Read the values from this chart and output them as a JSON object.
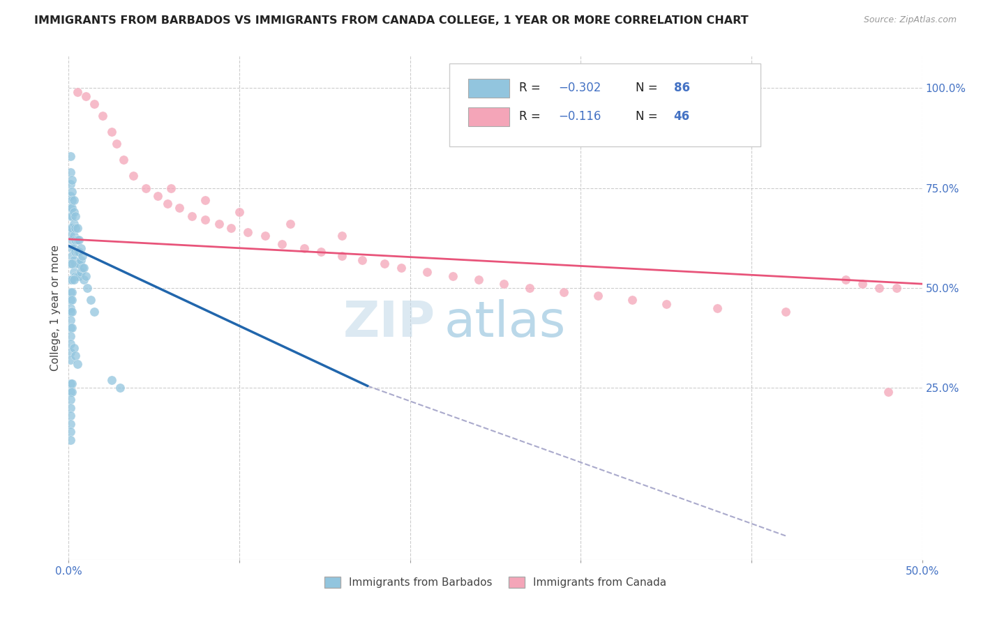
{
  "title": "IMMIGRANTS FROM BARBADOS VS IMMIGRANTS FROM CANADA COLLEGE, 1 YEAR OR MORE CORRELATION CHART",
  "source": "Source: ZipAtlas.com",
  "ylabel": "College, 1 year or more",
  "ylabel_right_ticks": [
    "100.0%",
    "75.0%",
    "50.0%",
    "25.0%"
  ],
  "ylabel_right_vals": [
    1.0,
    0.75,
    0.5,
    0.25
  ],
  "xlim": [
    0.0,
    0.5
  ],
  "ylim": [
    -0.18,
    1.08
  ],
  "color_blue": "#92c5de",
  "color_pink": "#f4a5b8",
  "color_blue_line": "#2166ac",
  "color_pink_line": "#e8547a",
  "color_dashed": "#aaaacc",
  "watermark_zip": "ZIP",
  "watermark_atlas": "atlas",
  "barbados_x": [
    0.001,
    0.001,
    0.001,
    0.001,
    0.001,
    0.001,
    0.001,
    0.001,
    0.002,
    0.002,
    0.002,
    0.002,
    0.002,
    0.002,
    0.002,
    0.002,
    0.002,
    0.003,
    0.003,
    0.003,
    0.003,
    0.003,
    0.003,
    0.003,
    0.004,
    0.004,
    0.004,
    0.004,
    0.004,
    0.004,
    0.005,
    0.005,
    0.005,
    0.005,
    0.005,
    0.006,
    0.006,
    0.006,
    0.006,
    0.007,
    0.007,
    0.007,
    0.008,
    0.008,
    0.009,
    0.009,
    0.01,
    0.011,
    0.013,
    0.015,
    0.001,
    0.002,
    0.001,
    0.002,
    0.003,
    0.001,
    0.001,
    0.002,
    0.002,
    0.001,
    0.001,
    0.002,
    0.001,
    0.001,
    0.002,
    0.001,
    0.001,
    0.001,
    0.001,
    0.003,
    0.004,
    0.005,
    0.025,
    0.03,
    0.001,
    0.001,
    0.002,
    0.002,
    0.001,
    0.001,
    0.001,
    0.001,
    0.001,
    0.001
  ],
  "barbados_y": [
    0.83,
    0.79,
    0.76,
    0.73,
    0.7,
    0.68,
    0.65,
    0.63,
    0.77,
    0.74,
    0.72,
    0.7,
    0.68,
    0.65,
    0.62,
    0.6,
    0.58,
    0.72,
    0.69,
    0.66,
    0.63,
    0.6,
    0.57,
    0.54,
    0.68,
    0.65,
    0.62,
    0.59,
    0.56,
    0.53,
    0.65,
    0.62,
    0.59,
    0.56,
    0.53,
    0.62,
    0.59,
    0.56,
    0.53,
    0.6,
    0.57,
    0.54,
    0.58,
    0.55,
    0.55,
    0.52,
    0.53,
    0.5,
    0.47,
    0.44,
    0.56,
    0.56,
    0.52,
    0.52,
    0.52,
    0.49,
    0.47,
    0.49,
    0.47,
    0.45,
    0.44,
    0.44,
    0.42,
    0.4,
    0.4,
    0.38,
    0.36,
    0.34,
    0.32,
    0.35,
    0.33,
    0.31,
    0.27,
    0.25,
    0.26,
    0.24,
    0.26,
    0.24,
    0.22,
    0.2,
    0.18,
    0.16,
    0.14,
    0.12
  ],
  "canada_x": [
    0.005,
    0.01,
    0.015,
    0.02,
    0.025,
    0.028,
    0.032,
    0.038,
    0.045,
    0.052,
    0.058,
    0.065,
    0.072,
    0.08,
    0.088,
    0.095,
    0.105,
    0.115,
    0.125,
    0.138,
    0.148,
    0.16,
    0.172,
    0.185,
    0.195,
    0.21,
    0.225,
    0.24,
    0.255,
    0.27,
    0.29,
    0.31,
    0.33,
    0.35,
    0.38,
    0.42,
    0.455,
    0.465,
    0.475,
    0.485,
    0.06,
    0.08,
    0.1,
    0.13,
    0.16,
    0.48
  ],
  "canada_y": [
    0.99,
    0.98,
    0.96,
    0.93,
    0.89,
    0.86,
    0.82,
    0.78,
    0.75,
    0.73,
    0.71,
    0.7,
    0.68,
    0.67,
    0.66,
    0.65,
    0.64,
    0.63,
    0.61,
    0.6,
    0.59,
    0.58,
    0.57,
    0.56,
    0.55,
    0.54,
    0.53,
    0.52,
    0.51,
    0.5,
    0.49,
    0.48,
    0.47,
    0.46,
    0.45,
    0.44,
    0.52,
    0.51,
    0.5,
    0.5,
    0.75,
    0.72,
    0.69,
    0.66,
    0.63,
    0.24
  ],
  "trend_blue_x0": 0.0,
  "trend_blue_y0": 0.605,
  "trend_blue_x1": 0.175,
  "trend_blue_y1": 0.255,
  "trend_pink_x0": 0.0,
  "trend_pink_y0": 0.622,
  "trend_pink_x1": 0.5,
  "trend_pink_y1": 0.51,
  "trend_dashed_x0": 0.175,
  "trend_dashed_y0": 0.255,
  "trend_dashed_x1": 0.42,
  "trend_dashed_y1": -0.12
}
